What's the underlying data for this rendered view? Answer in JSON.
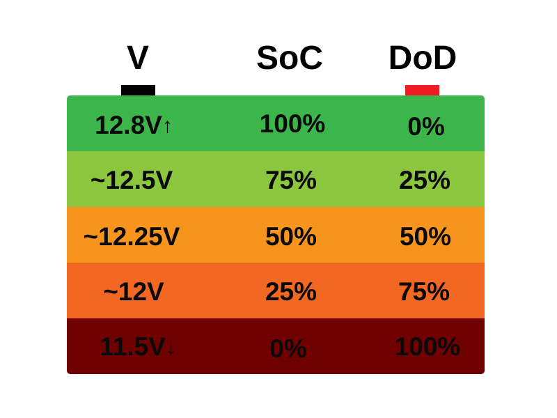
{
  "headers": {
    "voltage": "V",
    "soc": "SoC",
    "dod": "DoD"
  },
  "terminals": {
    "negative_color": "#000000",
    "positive_color": "#ed1c24"
  },
  "rows": [
    {
      "voltage": "12.8V",
      "arrow": "↑",
      "soc": "100%",
      "dod": "0%",
      "color": "#3cb64a"
    },
    {
      "voltage": "~12.5V",
      "arrow": "",
      "soc": "75%",
      "dod": "25%",
      "color": "#8cc63f"
    },
    {
      "voltage": "~12.25V",
      "arrow": "",
      "soc": "50%",
      "dod": "50%",
      "color": "#f7941d"
    },
    {
      "voltage": "~12V",
      "arrow": "",
      "soc": "25%",
      "dod": "75%",
      "color": "#f26722"
    },
    {
      "voltage": "11.5V",
      "arrow": "↓",
      "soc": "0%",
      "dod": "100%",
      "color": "#700000"
    }
  ]
}
